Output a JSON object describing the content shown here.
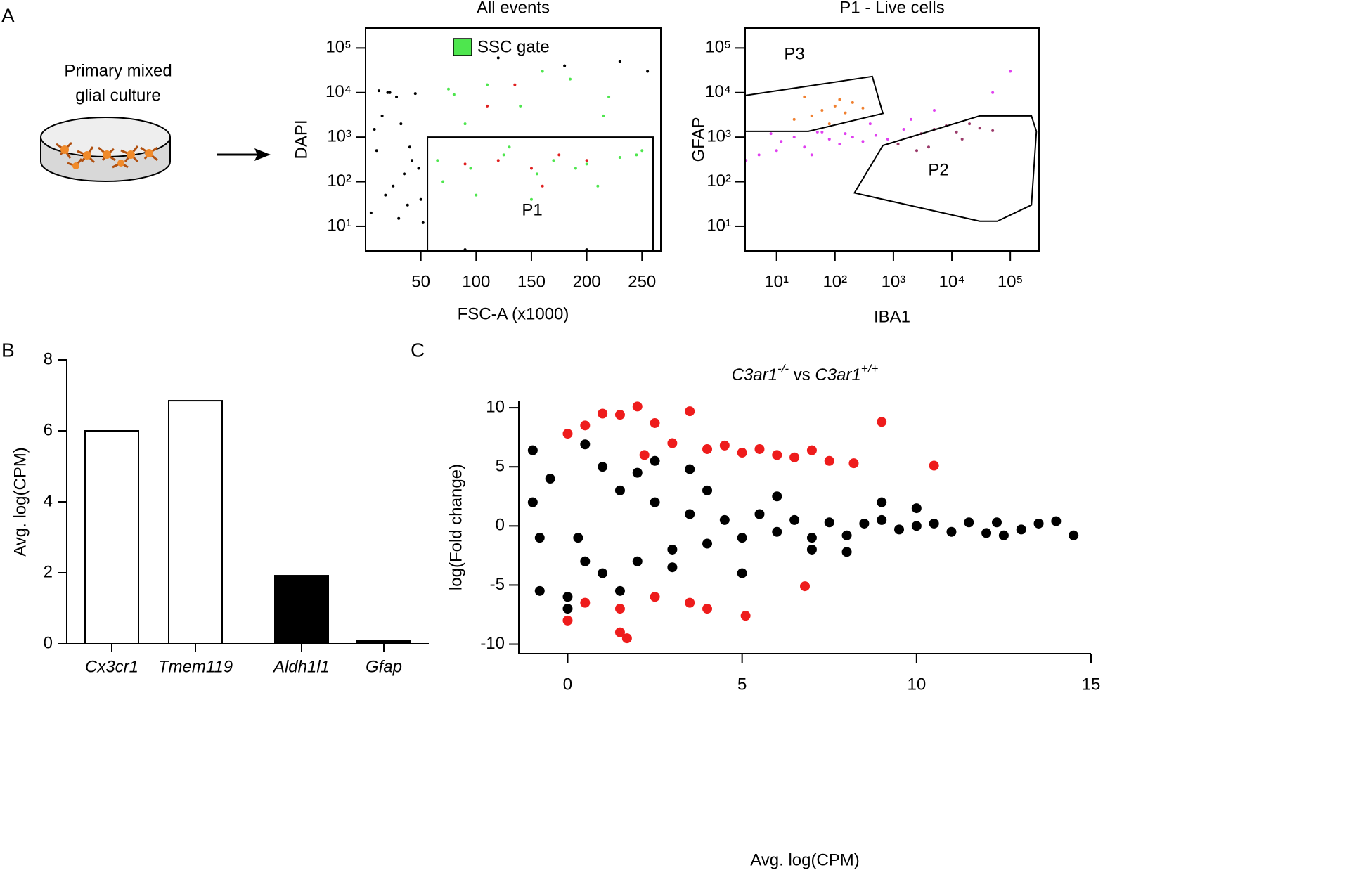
{
  "panel_labels": [
    "A",
    "B",
    "C"
  ],
  "schematic": {
    "lines": [
      "Primary mixed",
      "glial culture"
    ]
  },
  "chart_data": [
    {
      "type": "flow",
      "title": "All events",
      "xlabel": "FSC-A (x1000)",
      "ylabel": "DAPI",
      "xscale": "linear",
      "yscale": "log",
      "xlim": [
        0,
        267
      ],
      "ylim": [
        2.8,
        280000
      ],
      "xticks": [
        50,
        100,
        150,
        200,
        250
      ],
      "yticks": [
        {
          "value": 10,
          "label": "10¹"
        },
        {
          "value": 100,
          "label": "10²"
        },
        {
          "value": 1000,
          "label": "10³"
        },
        {
          "value": 10000,
          "label": "10⁴"
        },
        {
          "value": 100000,
          "label": "10⁵"
        }
      ],
      "series": [
        {
          "color": "#000000",
          "x": [
            5,
            10,
            15,
            20,
            25,
            30,
            35,
            40,
            45,
            50,
            12,
            22,
            32,
            42,
            52,
            8,
            18,
            28,
            38,
            48,
            120,
            180,
            230,
            255,
            90,
            200
          ],
          "y": [
            20,
            500,
            3000,
            10000,
            80,
            15,
            150,
            600,
            9500,
            40,
            11000,
            10000,
            2000,
            300,
            12,
            1500,
            50,
            8000,
            30,
            200,
            60000,
            40000,
            50000,
            30000,
            3,
            3
          ]
        },
        {
          "name": "SSC gate",
          "color": "#4ee64e",
          "x": [
            65,
            80,
            95,
            110,
            125,
            140,
            155,
            170,
            185,
            200,
            215,
            230,
            245,
            70,
            100,
            130,
            160,
            190,
            220,
            250,
            75,
            150,
            210,
            90
          ],
          "y": [
            300,
            9000,
            200,
            15000,
            400,
            5000,
            150,
            300,
            20000,
            250,
            3000,
            350,
            400,
            100,
            50,
            600,
            30000,
            200,
            8000,
            500,
            12000,
            40,
            80,
            2000
          ]
        },
        {
          "color": "#e02020",
          "x": [
            90,
            120,
            150,
            175,
            200,
            135,
            160,
            110
          ],
          "y": [
            250,
            300,
            200,
            400,
            300,
            15000,
            80,
            5000
          ]
        }
      ],
      "gates": [
        {
          "label": "P1",
          "x": [
            56,
            260,
            260,
            56
          ],
          "y": [
            1000,
            1000,
            2.8,
            2.8
          ]
        }
      ]
    },
    {
      "type": "flow",
      "title": "P1 - Live cells",
      "xlabel": "IBA1",
      "ylabel": "GFAP",
      "xscale": "log",
      "yscale": "log",
      "xlim": [
        2.9,
        310000
      ],
      "ylim": [
        2.8,
        280000
      ],
      "xticks": [
        {
          "value": 10,
          "label": "10¹"
        },
        {
          "value": 100,
          "label": "10²"
        },
        {
          "value": 1000,
          "label": "10³"
        },
        {
          "value": 10000,
          "label": "10⁴"
        },
        {
          "value": 100000,
          "label": "10⁵"
        }
      ],
      "yticks": [
        {
          "value": 10,
          "label": "10¹"
        },
        {
          "value": 100,
          "label": "10²"
        },
        {
          "value": 1000,
          "label": "10³"
        },
        {
          "value": 10000,
          "label": "10⁴"
        },
        {
          "value": 100000,
          "label": "10⁵"
        }
      ],
      "series": [
        {
          "color": "#f08030",
          "x": [
            20,
            40,
            60,
            100,
            150,
            200,
            300,
            30,
            80,
            120
          ],
          "y": [
            2500,
            3000,
            4000,
            5000,
            3500,
            6000,
            4500,
            8000,
            2000,
            7000
          ]
        },
        {
          "color": "#e040f0",
          "x": [
            5,
            8,
            12,
            20,
            30,
            50,
            80,
            120,
            200,
            300,
            500,
            800,
            1500,
            3,
            10,
            40,
            150,
            60,
            400,
            2000,
            5000,
            50000,
            100000
          ],
          "y": [
            400,
            1200,
            800,
            1000,
            600,
            1300,
            900,
            700,
            1000,
            800,
            1100,
            900,
            1500,
            300,
            500,
            400,
            1200,
            1300,
            2000,
            2500,
            4000,
            10000,
            30000
          ]
        },
        {
          "color": "#9a3a6a",
          "x": [
            1200,
            2000,
            3000,
            5000,
            8000,
            12000,
            20000,
            30000,
            50000,
            4000,
            15000,
            2500
          ],
          "y": [
            700,
            1000,
            1200,
            1500,
            1800,
            1300,
            2000,
            1600,
            1400,
            600,
            900,
            500
          ]
        }
      ],
      "gates": [
        {
          "label": "P3",
          "x": [
            2.9,
            435,
            660,
            35,
            2.9
          ],
          "y": [
            8600,
            23000,
            3400,
            1350,
            1350
          ]
        },
        {
          "label": "P2",
          "x": [
            660,
            30000,
            230000,
            280000,
            230000,
            60000,
            30000,
            215
          ],
          "y": [
            650,
            3000,
            3000,
            1350,
            30,
            13,
            13,
            56
          ]
        }
      ]
    },
    {
      "type": "bar",
      "ylabel": "Avg. log(CPM)",
      "categories": [
        "Cx3cr1",
        "Tmem119",
        "Aldh1l1",
        "Gfap"
      ],
      "values": [
        6.0,
        6.85,
        1.92,
        0.08
      ],
      "colors": [
        "#ffffff",
        "#ffffff",
        "#000000",
        "#000000"
      ],
      "ylim": [
        0,
        8
      ],
      "yticks": [
        0,
        2,
        4,
        6,
        8
      ]
    },
    {
      "type": "scatter",
      "title": {
        "gene1": "C3ar1",
        "sup1": "-/-",
        "vs": " vs ",
        "gene2": "C3ar1",
        "sup2": "+/+"
      },
      "xlabel": "Avg. log(CPM)",
      "ylabel": "log(Fold change)",
      "xscale": "linear",
      "yscale": "linear",
      "xlim": [
        -1.4,
        15
      ],
      "ylim": [
        -10.8,
        10.6
      ],
      "xticks": [
        0,
        5,
        10,
        15
      ],
      "yticks": [
        -10,
        -5,
        0,
        5,
        10
      ],
      "series": [
        {
          "color": "#000000",
          "x": [
            -1,
            -0.8,
            -0.5,
            0,
            0.3,
            0.5,
            1,
            1.5,
            2,
            2.5,
            3,
            3.5,
            4,
            4.5,
            5,
            5.5,
            6,
            6.5,
            7,
            7.5,
            8,
            8.5,
            9,
            9.5,
            10,
            10.5,
            11,
            11.5,
            12,
            12.3,
            12.5,
            13,
            13.5,
            14,
            14.5,
            1,
            2,
            3,
            4,
            5,
            6,
            7,
            -0.8,
            -1,
            0,
            0.5,
            1.5,
            2.5,
            3.5,
            8,
            9,
            10
          ],
          "y": [
            6.4,
            -5.5,
            4,
            -7,
            -1,
            6.9,
            5,
            3,
            -3,
            2,
            -2,
            1,
            -1.5,
            0.5,
            -1,
            1,
            -0.5,
            0.5,
            -1,
            0.3,
            -0.8,
            0.2,
            0.5,
            -0.3,
            0,
            0.2,
            -0.5,
            0.3,
            -0.6,
            0.3,
            -0.8,
            -0.3,
            0.2,
            0.4,
            -0.8,
            -4,
            4.5,
            -3.5,
            3,
            -4,
            2.5,
            -2,
            -1,
            2,
            -6,
            -3,
            -5.5,
            5.5,
            4.8,
            -2.2,
            2,
            1.5
          ]
        },
        {
          "color": "#ee1c1c",
          "x": [
            0,
            0.5,
            1,
            1.5,
            2,
            2.2,
            2.5,
            3,
            3.5,
            4,
            4.5,
            5,
            5.5,
            6,
            6.5,
            7,
            7.5,
            8.2,
            9,
            10.5,
            0,
            0.5,
            1.5,
            2.5,
            3.5,
            4,
            5.1,
            6.8,
            1.5,
            1.7
          ],
          "y": [
            7.8,
            8.5,
            9.5,
            9.4,
            10.1,
            6,
            8.7,
            7,
            9.7,
            6.5,
            6.8,
            6.2,
            6.5,
            6,
            5.8,
            6.4,
            5.5,
            5.3,
            8.8,
            5.1,
            -8,
            -6.5,
            -7,
            -6,
            -6.5,
            -7,
            -7.6,
            -5.1,
            -9,
            -9.5
          ]
        }
      ]
    }
  ]
}
